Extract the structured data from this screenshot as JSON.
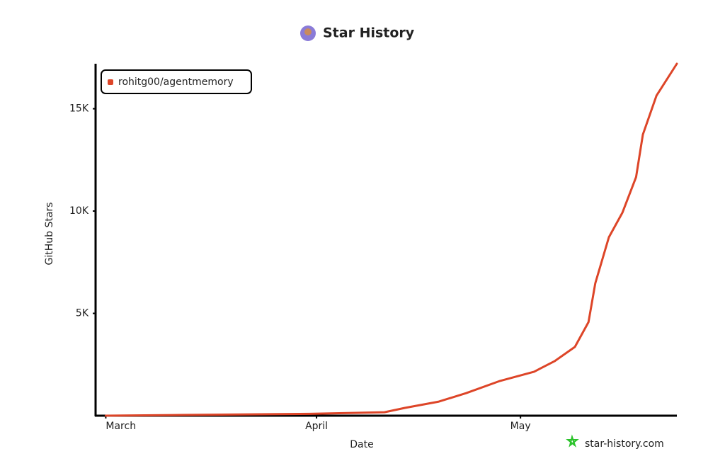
{
  "chart_data": {
    "type": "line",
    "title": "Star History",
    "x_label": "Date",
    "y_label": "GitHub Stars",
    "watermark": "star-history.com",
    "x": [
      0,
      10,
      20,
      30,
      41,
      44,
      49,
      53,
      58,
      63,
      66,
      69,
      71,
      72,
      74,
      76,
      78,
      79,
      81,
      84
    ],
    "series": [
      {
        "name": "rohitg00/agentmemory",
        "color": "#dd4528",
        "values": [
          0,
          30,
          60,
          90,
          170,
          380,
          690,
          1100,
          1700,
          2150,
          2660,
          3360,
          4570,
          6470,
          8720,
          9930,
          11660,
          13740,
          15640,
          17200
        ]
      }
    ],
    "xlim": [
      -1.5,
      84
    ],
    "xticks": [
      {
        "value": 0,
        "label": "March"
      },
      {
        "value": 31,
        "label": "April"
      },
      {
        "value": 61,
        "label": "May"
      }
    ],
    "ylim": [
      0,
      17200
    ],
    "yticks": [
      {
        "value": 5000,
        "label": "5K"
      },
      {
        "value": 10000,
        "label": "10K"
      },
      {
        "value": 15000,
        "label": "15K"
      }
    ],
    "grid": false,
    "legend": "top-left"
  }
}
